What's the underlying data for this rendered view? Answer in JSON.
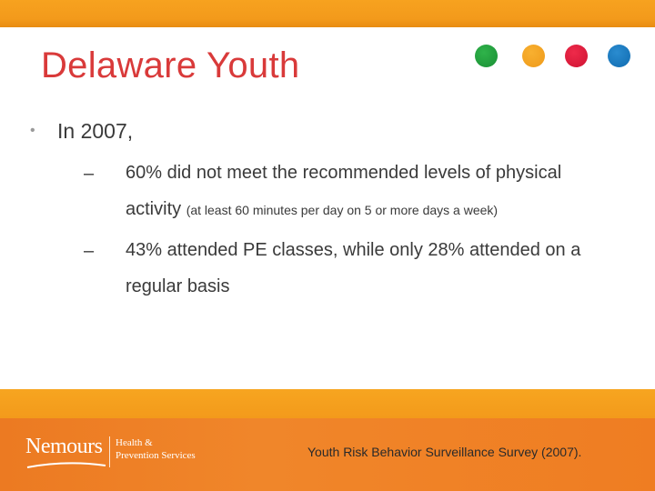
{
  "slide": {
    "title": "Delaware Youth",
    "bullet": "In 2007,",
    "sub_items": [
      {
        "main": "60% did not meet the recommended levels of physical activity",
        "note": "(at least 60 minutes per day on 5 or more days a week)"
      },
      {
        "main": "43% attended PE classes, while only 28% attended on a regular basis"
      }
    ]
  },
  "footer": {
    "logo_name": "Nemours",
    "logo_line1": "Health &",
    "logo_line2": "Prevention Services",
    "source": "Youth Risk Behavior Surveillance Survey (2007)."
  },
  "colors": {
    "title": "#d93a3a",
    "accent_orange": "#f39a1b",
    "footer_orange": "#ef7d22",
    "dot_green": "#2fb34a",
    "dot_orange": "#f8b030",
    "dot_red": "#ee2a4a",
    "dot_blue": "#2a8cd0"
  }
}
